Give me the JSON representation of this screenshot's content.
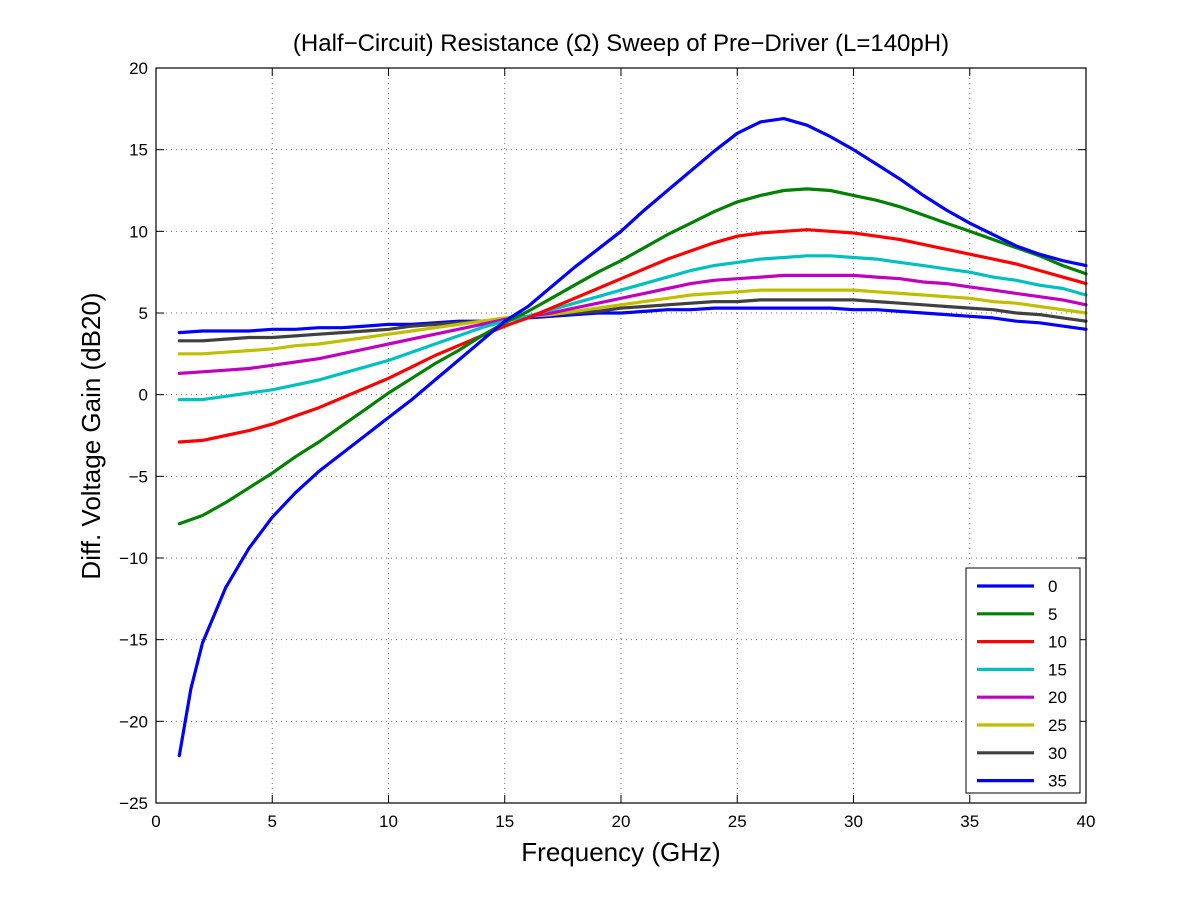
{
  "chart_data": {
    "type": "line",
    "title": "(Half−Circuit) Resistance (Ω) Sweep of Pre−Driver (L=140pH)",
    "xlabel": "Frequency (GHz)",
    "ylabel": "Diff. Voltage Gain (dB20)",
    "xlim": [
      0,
      40
    ],
    "ylim": [
      -25,
      20
    ],
    "xticks": [
      0,
      5,
      10,
      15,
      20,
      25,
      30,
      35,
      40
    ],
    "yticks": [
      -25,
      -20,
      -15,
      -10,
      -5,
      0,
      5,
      10,
      15,
      20
    ],
    "xtick_labels": [
      "0",
      "5",
      "10",
      "15",
      "20",
      "25",
      "30",
      "35",
      "40"
    ],
    "ytick_labels": [
      "−25",
      "−20",
      "−15",
      "−10",
      "−5",
      "0",
      "5",
      "10",
      "15",
      "20"
    ],
    "grid": true,
    "legend_position": "bottom-right",
    "series": [
      {
        "name": "0",
        "color": "#0000ff",
        "x": [
          1,
          1.5,
          2,
          3,
          4,
          5,
          6,
          7,
          8,
          9,
          10,
          11,
          12,
          13,
          14,
          15,
          16,
          17,
          18,
          19,
          20,
          21,
          22,
          23,
          24,
          25,
          26,
          27,
          28,
          29,
          30,
          31,
          32,
          33,
          34,
          35,
          36,
          37,
          38,
          39,
          40
        ],
        "y": [
          -22.1,
          -18,
          -15.2,
          -11.8,
          -9.4,
          -7.5,
          -6.0,
          -4.7,
          -3.6,
          -2.5,
          -1.4,
          -0.3,
          0.9,
          2.1,
          3.3,
          4.5,
          5.4,
          6.6,
          7.8,
          8.9,
          10.0,
          11.3,
          12.5,
          13.7,
          14.9,
          16.0,
          16.7,
          16.9,
          16.5,
          15.8,
          15.0,
          14.1,
          13.2,
          12.2,
          11.3,
          10.5,
          9.8,
          9.1,
          8.6,
          8.2,
          7.9
        ]
      },
      {
        "name": "5",
        "color": "#008000",
        "x": [
          1,
          2,
          3,
          4,
          5,
          6,
          7,
          8,
          9,
          10,
          11,
          12,
          13,
          14,
          15,
          16,
          17,
          18,
          19,
          20,
          21,
          22,
          23,
          24,
          25,
          26,
          27,
          28,
          29,
          30,
          31,
          32,
          33,
          34,
          35,
          36,
          37,
          38,
          39,
          40
        ],
        "y": [
          -7.9,
          -7.4,
          -6.6,
          -5.7,
          -4.8,
          -3.8,
          -2.9,
          -1.9,
          -0.9,
          0.1,
          1.0,
          1.9,
          2.7,
          3.6,
          4.4,
          5.1,
          5.9,
          6.7,
          7.5,
          8.2,
          9.0,
          9.8,
          10.5,
          11.2,
          11.8,
          12.2,
          12.5,
          12.6,
          12.5,
          12.2,
          11.9,
          11.5,
          11.0,
          10.5,
          10.0,
          9.5,
          9.0,
          8.5,
          7.9,
          7.4
        ]
      },
      {
        "name": "10",
        "color": "#ff0000",
        "x": [
          1,
          2,
          3,
          4,
          5,
          6,
          7,
          8,
          9,
          10,
          11,
          12,
          13,
          14,
          15,
          16,
          17,
          18,
          19,
          20,
          21,
          22,
          23,
          24,
          25,
          26,
          27,
          28,
          29,
          30,
          31,
          32,
          33,
          34,
          35,
          36,
          37,
          38,
          39,
          40
        ],
        "y": [
          -2.9,
          -2.8,
          -2.5,
          -2.2,
          -1.8,
          -1.3,
          -0.8,
          -0.2,
          0.4,
          1.0,
          1.7,
          2.4,
          3.0,
          3.6,
          4.2,
          4.7,
          5.3,
          5.9,
          6.5,
          7.1,
          7.7,
          8.3,
          8.8,
          9.3,
          9.7,
          9.9,
          10.0,
          10.1,
          10.0,
          9.9,
          9.7,
          9.5,
          9.2,
          8.9,
          8.6,
          8.3,
          8.0,
          7.6,
          7.2,
          6.8
        ]
      },
      {
        "name": "15",
        "color": "#00bfbf",
        "x": [
          1,
          2,
          3,
          4,
          5,
          6,
          7,
          8,
          9,
          10,
          11,
          12,
          13,
          14,
          15,
          16,
          17,
          18,
          19,
          20,
          21,
          22,
          23,
          24,
          25,
          26,
          27,
          28,
          29,
          30,
          31,
          32,
          33,
          34,
          35,
          36,
          37,
          38,
          39,
          40
        ],
        "y": [
          -0.3,
          -0.3,
          -0.1,
          0.1,
          0.3,
          0.6,
          0.9,
          1.3,
          1.7,
          2.1,
          2.6,
          3.1,
          3.6,
          4.1,
          4.5,
          4.8,
          5.2,
          5.6,
          6.0,
          6.4,
          6.8,
          7.2,
          7.6,
          7.9,
          8.1,
          8.3,
          8.4,
          8.5,
          8.5,
          8.4,
          8.3,
          8.1,
          7.9,
          7.7,
          7.5,
          7.2,
          7.0,
          6.7,
          6.5,
          6.1
        ]
      },
      {
        "name": "20",
        "color": "#bf00bf",
        "x": [
          1,
          2,
          3,
          4,
          5,
          6,
          7,
          8,
          9,
          10,
          11,
          12,
          13,
          14,
          15,
          16,
          17,
          18,
          19,
          20,
          21,
          22,
          23,
          24,
          25,
          26,
          27,
          28,
          29,
          30,
          31,
          32,
          33,
          34,
          35,
          36,
          37,
          38,
          39,
          40
        ],
        "y": [
          1.3,
          1.4,
          1.5,
          1.6,
          1.8,
          2.0,
          2.2,
          2.5,
          2.8,
          3.1,
          3.4,
          3.7,
          4.0,
          4.3,
          4.6,
          4.8,
          5.0,
          5.3,
          5.6,
          5.9,
          6.2,
          6.5,
          6.8,
          7.0,
          7.1,
          7.2,
          7.3,
          7.3,
          7.3,
          7.3,
          7.2,
          7.1,
          6.9,
          6.8,
          6.6,
          6.4,
          6.2,
          6.0,
          5.8,
          5.5
        ]
      },
      {
        "name": "25",
        "color": "#bfbf00",
        "x": [
          1,
          2,
          3,
          4,
          5,
          6,
          7,
          8,
          9,
          10,
          11,
          12,
          13,
          14,
          15,
          16,
          17,
          18,
          19,
          20,
          21,
          22,
          23,
          24,
          25,
          26,
          27,
          28,
          29,
          30,
          31,
          32,
          33,
          34,
          35,
          36,
          37,
          38,
          39,
          40
        ],
        "y": [
          2.5,
          2.5,
          2.6,
          2.7,
          2.8,
          3.0,
          3.1,
          3.3,
          3.5,
          3.7,
          3.9,
          4.1,
          4.3,
          4.5,
          4.7,
          4.8,
          4.9,
          5.1,
          5.3,
          5.5,
          5.7,
          5.9,
          6.1,
          6.2,
          6.3,
          6.4,
          6.4,
          6.4,
          6.4,
          6.4,
          6.3,
          6.2,
          6.1,
          6.0,
          5.9,
          5.7,
          5.6,
          5.4,
          5.2,
          5.0
        ]
      },
      {
        "name": "30",
        "color": "#404040",
        "x": [
          1,
          2,
          3,
          4,
          5,
          6,
          7,
          8,
          9,
          10,
          11,
          12,
          13,
          14,
          15,
          16,
          17,
          18,
          19,
          20,
          21,
          22,
          23,
          24,
          25,
          26,
          27,
          28,
          29,
          30,
          31,
          32,
          33,
          34,
          35,
          36,
          37,
          38,
          39,
          40
        ],
        "y": [
          3.3,
          3.3,
          3.4,
          3.5,
          3.5,
          3.6,
          3.7,
          3.8,
          3.9,
          4.0,
          4.2,
          4.3,
          4.4,
          4.5,
          4.6,
          4.8,
          4.9,
          5.0,
          5.1,
          5.3,
          5.4,
          5.5,
          5.6,
          5.7,
          5.7,
          5.8,
          5.8,
          5.8,
          5.8,
          5.8,
          5.7,
          5.6,
          5.5,
          5.4,
          5.3,
          5.2,
          5.0,
          4.9,
          4.7,
          4.5
        ]
      },
      {
        "name": "35",
        "color": "#0000ff",
        "x": [
          1,
          2,
          3,
          4,
          5,
          6,
          7,
          8,
          9,
          10,
          11,
          12,
          13,
          14,
          15,
          16,
          17,
          18,
          19,
          20,
          21,
          22,
          23,
          24,
          25,
          26,
          27,
          28,
          29,
          30,
          31,
          32,
          33,
          34,
          35,
          36,
          37,
          38,
          39,
          40
        ],
        "y": [
          3.8,
          3.9,
          3.9,
          3.9,
          4.0,
          4.0,
          4.1,
          4.1,
          4.2,
          4.3,
          4.3,
          4.4,
          4.5,
          4.5,
          4.6,
          4.7,
          4.8,
          4.9,
          5.0,
          5.0,
          5.1,
          5.2,
          5.2,
          5.3,
          5.3,
          5.3,
          5.3,
          5.3,
          5.3,
          5.2,
          5.2,
          5.1,
          5.0,
          4.9,
          4.8,
          4.7,
          4.5,
          4.4,
          4.2,
          4.0
        ]
      }
    ]
  }
}
